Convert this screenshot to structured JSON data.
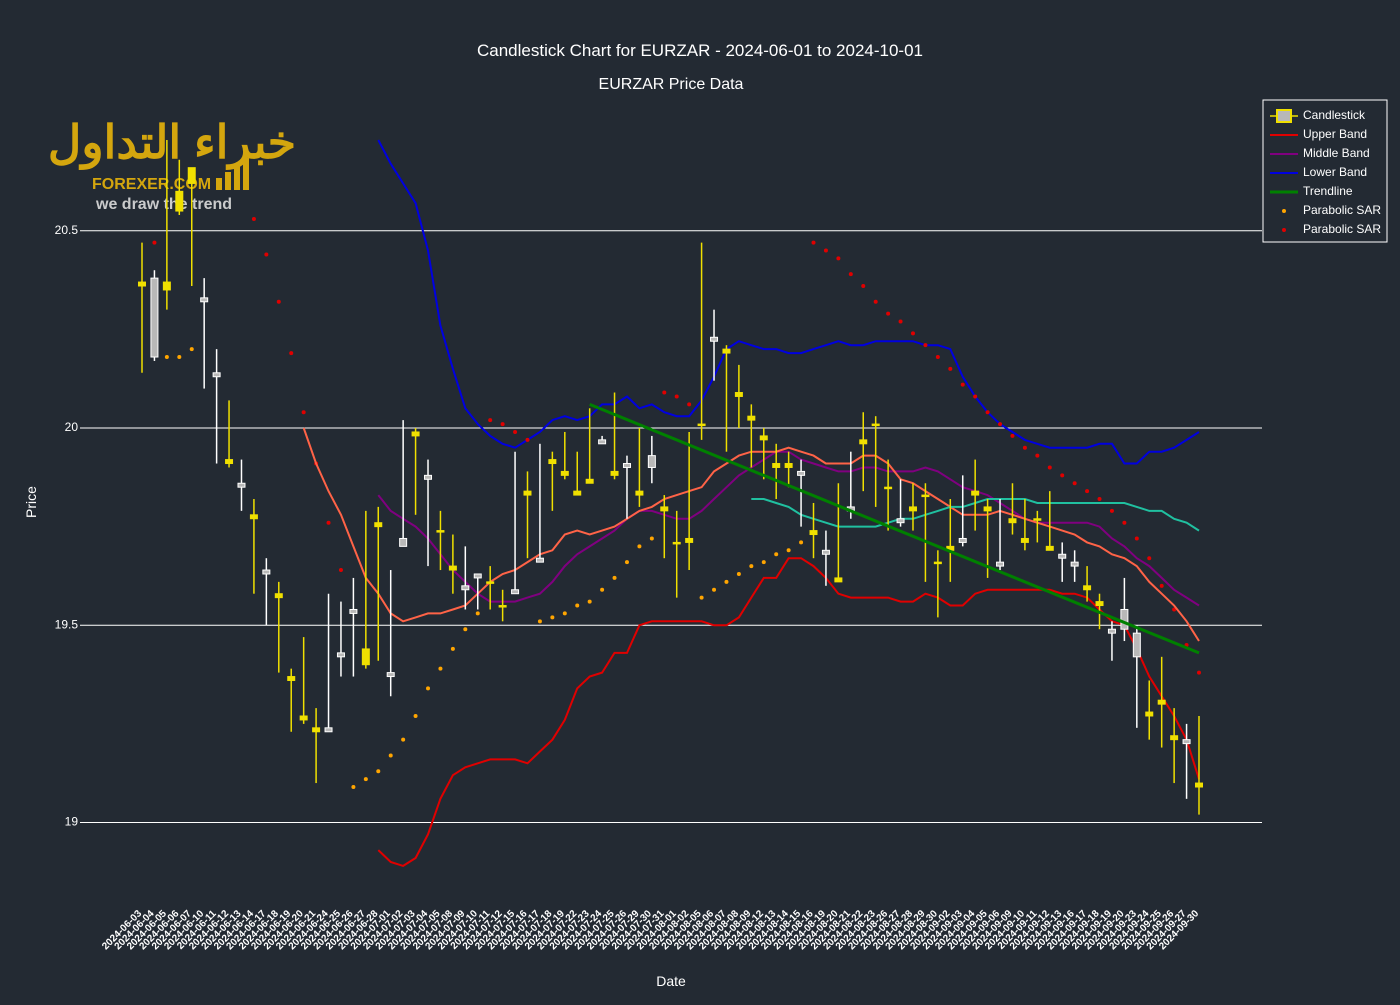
{
  "watermark": {
    "arabic": "خبراء التداول",
    "brand": "FOREXER.COM",
    "tagline": "we draw the trend"
  },
  "chart_data": {
    "type": "candlestick",
    "title": "Candlestick Chart for EURZAR - 2024-06-01 to 2024-10-01",
    "subtitle": "EURZAR Price Data",
    "x_label": "Date",
    "y_label": "Price",
    "ylim": [
      18.8,
      20.83
    ],
    "yticks": [
      19,
      19.5,
      20,
      20.5
    ],
    "grid": true,
    "legend": "top-right",
    "categories": [
      "2024-06-03",
      "2024-06-04",
      "2024-06-05",
      "2024-06-06",
      "2024-06-07",
      "2024-06-10",
      "2024-06-11",
      "2024-06-12",
      "2024-06-13",
      "2024-06-14",
      "2024-06-17",
      "2024-06-18",
      "2024-06-19",
      "2024-06-20",
      "2024-06-21",
      "2024-06-24",
      "2024-06-25",
      "2024-06-26",
      "2024-06-27",
      "2024-06-28",
      "2024-07-01",
      "2024-07-02",
      "2024-07-03",
      "2024-07-04",
      "2024-07-05",
      "2024-07-08",
      "2024-07-09",
      "2024-07-10",
      "2024-07-11",
      "2024-07-12",
      "2024-07-15",
      "2024-07-16",
      "2024-07-17",
      "2024-07-18",
      "2024-07-19",
      "2024-07-22",
      "2024-07-23",
      "2024-07-24",
      "2024-07-25",
      "2024-07-26",
      "2024-07-29",
      "2024-07-30",
      "2024-07-31",
      "2024-08-01",
      "2024-08-02",
      "2024-08-05",
      "2024-08-06",
      "2024-08-07",
      "2024-08-08",
      "2024-08-09",
      "2024-08-12",
      "2024-08-13",
      "2024-08-14",
      "2024-08-15",
      "2024-08-16",
      "2024-08-19",
      "2024-08-20",
      "2024-08-21",
      "2024-08-22",
      "2024-08-23",
      "2024-08-26",
      "2024-08-27",
      "2024-08-28",
      "2024-08-29",
      "2024-08-30",
      "2024-09-02",
      "2024-09-03",
      "2024-09-04",
      "2024-09-05",
      "2024-09-06",
      "2024-09-09",
      "2024-09-10",
      "2024-09-11",
      "2024-09-12",
      "2024-09-13",
      "2024-09-16",
      "2024-09-17",
      "2024-09-18",
      "2024-09-19",
      "2024-09-20",
      "2024-09-23",
      "2024-09-24",
      "2024-09-25",
      "2024-09-26",
      "2024-09-27",
      "2024-09-30"
    ],
    "candles": {
      "name": "Candlestick",
      "increasing_color": "#f0e000",
      "decreasing_color": "#ffffff",
      "open": [
        20.36,
        20.38,
        20.35,
        20.55,
        20.62,
        20.33,
        20.14,
        19.91,
        19.86,
        19.77,
        19.64,
        19.57,
        19.36,
        19.26,
        19.23,
        19.24,
        19.43,
        19.54,
        19.4,
        19.75,
        19.38,
        19.72,
        19.98,
        19.88,
        19.74,
        19.64,
        19.6,
        19.63,
        19.61,
        19.55,
        19.59,
        19.83,
        19.67,
        19.91,
        19.88,
        19.83,
        19.86,
        19.97,
        19.88,
        19.91,
        19.83,
        19.93,
        19.79,
        19.71,
        19.71,
        20.01,
        20.23,
        20.19,
        20.08,
        20.02,
        19.97,
        19.9,
        19.9,
        19.89,
        19.73,
        19.69,
        19.61,
        19.8,
        19.96,
        20.01,
        19.85,
        19.77,
        19.79,
        19.83,
        19.66,
        19.69,
        19.72,
        19.83,
        19.79,
        19.66,
        19.76,
        19.71,
        19.77,
        19.69,
        19.68,
        19.66,
        19.59,
        19.55,
        19.49,
        19.54,
        19.48,
        19.27,
        19.3,
        19.21,
        19.21,
        19.09
      ],
      "high": [
        20.47,
        20.4,
        20.73,
        20.68,
        20.66,
        20.38,
        20.2,
        20.07,
        19.92,
        19.82,
        19.67,
        19.61,
        19.39,
        19.47,
        19.29,
        19.58,
        19.56,
        19.62,
        19.79,
        19.8,
        19.64,
        20.02,
        20.0,
        19.92,
        19.79,
        19.73,
        19.7,
        19.63,
        19.65,
        19.59,
        19.94,
        19.89,
        19.96,
        19.94,
        19.99,
        19.94,
        20.05,
        19.98,
        20.09,
        19.93,
        20.0,
        19.98,
        19.83,
        19.79,
        19.99,
        20.47,
        20.3,
        20.21,
        20.16,
        20.06,
        20.0,
        19.96,
        19.94,
        19.92,
        19.81,
        19.74,
        19.86,
        19.94,
        20.04,
        20.03,
        19.92,
        19.87,
        19.86,
        19.86,
        19.69,
        19.82,
        19.88,
        19.92,
        19.82,
        19.82,
        19.86,
        19.82,
        19.79,
        19.84,
        19.71,
        19.69,
        19.65,
        19.58,
        19.51,
        19.62,
        19.5,
        19.36,
        19.42,
        19.29,
        19.25,
        19.27
      ],
      "low": [
        20.14,
        20.17,
        20.3,
        20.54,
        20.36,
        20.1,
        19.91,
        19.9,
        19.79,
        19.58,
        19.5,
        19.38,
        19.23,
        19.25,
        19.1,
        19.23,
        19.37,
        19.37,
        19.39,
        19.41,
        19.32,
        19.7,
        19.78,
        19.65,
        19.64,
        19.58,
        19.54,
        19.54,
        19.54,
        19.51,
        19.58,
        19.67,
        19.66,
        19.79,
        19.87,
        19.83,
        19.86,
        19.96,
        19.87,
        19.77,
        19.8,
        19.86,
        19.67,
        19.57,
        19.64,
        19.97,
        20.12,
        19.94,
        20.0,
        19.9,
        19.87,
        19.82,
        19.85,
        19.75,
        19.67,
        19.6,
        19.61,
        19.77,
        19.84,
        19.8,
        19.74,
        19.75,
        19.74,
        19.61,
        19.52,
        19.61,
        19.7,
        19.74,
        19.62,
        19.64,
        19.73,
        19.69,
        19.71,
        19.69,
        19.61,
        19.61,
        19.56,
        19.49,
        19.41,
        19.46,
        19.24,
        19.21,
        19.19,
        19.1,
        19.06,
        19.02
      ],
      "close": [
        20.37,
        20.18,
        20.37,
        20.6,
        20.66,
        20.32,
        20.13,
        19.92,
        19.85,
        19.78,
        19.63,
        19.58,
        19.37,
        19.27,
        19.24,
        19.23,
        19.42,
        19.53,
        19.44,
        19.76,
        19.37,
        19.7,
        19.99,
        19.87,
        19.74,
        19.65,
        19.59,
        19.62,
        19.61,
        19.55,
        19.58,
        19.84,
        19.66,
        19.92,
        19.89,
        19.84,
        19.87,
        19.96,
        19.89,
        19.9,
        19.84,
        19.9,
        19.8,
        19.71,
        19.72,
        20.01,
        20.22,
        20.2,
        20.09,
        20.03,
        19.98,
        19.91,
        19.91,
        19.88,
        19.74,
        19.68,
        19.62,
        19.79,
        19.97,
        20.01,
        19.85,
        19.76,
        19.8,
        19.83,
        19.66,
        19.7,
        19.71,
        19.84,
        19.8,
        19.65,
        19.77,
        19.72,
        19.77,
        19.7,
        19.67,
        19.65,
        19.6,
        19.56,
        19.48,
        19.49,
        19.42,
        19.28,
        19.31,
        19.22,
        19.2,
        19.1
      ]
    },
    "series": [
      {
        "name": "Upper Band",
        "type": "line",
        "color": "#e00000",
        "values": [
          null,
          null,
          null,
          null,
          null,
          null,
          null,
          null,
          null,
          null,
          null,
          null,
          null,
          null,
          null,
          null,
          null,
          null,
          null,
          18.93,
          18.9,
          18.89,
          18.91,
          18.97,
          19.06,
          19.12,
          19.14,
          19.15,
          19.16,
          19.16,
          19.16,
          19.15,
          19.18,
          19.21,
          19.26,
          19.34,
          19.37,
          19.38,
          19.43,
          19.43,
          19.5,
          19.51,
          19.51,
          19.51,
          19.51,
          19.51,
          19.5,
          19.5,
          19.52,
          19.57,
          19.62,
          19.62,
          19.67,
          19.67,
          19.65,
          19.62,
          19.58,
          19.57,
          19.57,
          19.57,
          19.57,
          19.56,
          19.56,
          19.58,
          19.57,
          19.55,
          19.55,
          19.58,
          19.59,
          19.59,
          19.59,
          19.59,
          19.59,
          19.59,
          19.58,
          19.58,
          19.57,
          19.54,
          19.51,
          19.5,
          19.44,
          19.37,
          19.32,
          19.27,
          19.21,
          19.11
        ]
      },
      {
        "name": "Middle Band",
        "type": "line",
        "color": "#800080",
        "values": [
          null,
          null,
          null,
          null,
          null,
          null,
          null,
          null,
          null,
          null,
          null,
          null,
          null,
          null,
          null,
          null,
          null,
          null,
          null,
          19.83,
          19.79,
          19.77,
          19.75,
          19.72,
          19.68,
          19.64,
          19.61,
          19.58,
          19.56,
          19.56,
          19.56,
          19.57,
          19.58,
          19.61,
          19.65,
          19.68,
          19.7,
          19.72,
          19.74,
          19.77,
          19.79,
          19.79,
          19.78,
          19.77,
          19.77,
          19.79,
          19.82,
          19.85,
          19.88,
          19.9,
          19.92,
          19.94,
          19.94,
          19.92,
          19.91,
          19.9,
          19.89,
          19.89,
          19.9,
          19.9,
          19.89,
          19.89,
          19.89,
          19.9,
          19.89,
          19.87,
          19.85,
          19.84,
          19.83,
          19.81,
          19.79,
          19.77,
          19.76,
          19.76,
          19.76,
          19.76,
          19.76,
          19.75,
          19.72,
          19.7,
          19.67,
          19.65,
          19.62,
          19.59,
          19.57,
          19.55
        ]
      },
      {
        "name": "Lower Band",
        "type": "line",
        "color": "#0000e0",
        "values": [
          null,
          null,
          null,
          null,
          null,
          null,
          null,
          null,
          null,
          null,
          null,
          null,
          null,
          null,
          null,
          null,
          null,
          null,
          null,
          20.73,
          20.67,
          20.62,
          20.57,
          20.45,
          20.26,
          20.15,
          20.05,
          20.01,
          19.98,
          19.96,
          19.95,
          19.97,
          19.99,
          20.02,
          20.03,
          20.02,
          20.03,
          20.06,
          20.06,
          20.08,
          20.05,
          20.06,
          20.04,
          20.03,
          20.03,
          20.07,
          20.13,
          20.2,
          20.22,
          20.21,
          20.2,
          20.2,
          20.19,
          20.19,
          20.2,
          20.21,
          20.22,
          20.21,
          20.21,
          20.22,
          20.22,
          20.22,
          20.22,
          20.21,
          20.21,
          20.2,
          20.13,
          20.08,
          20.04,
          20.01,
          19.99,
          19.97,
          19.96,
          19.95,
          19.95,
          19.95,
          19.95,
          19.96,
          19.96,
          19.91,
          19.91,
          19.94,
          19.94,
          19.95,
          19.97,
          19.99
        ]
      },
      {
        "name": "Trendline",
        "type": "line",
        "color": "#008000",
        "width": 3,
        "x": [
          "2024-07-23",
          "2024-09-30"
        ],
        "values": [
          20.06,
          19.43
        ]
      },
      {
        "name": "Parabolic SAR",
        "type": "scatter",
        "color": "#ffa500",
        "values": [
          null,
          null,
          20.18,
          20.18,
          20.2,
          null,
          null,
          null,
          null,
          null,
          null,
          null,
          null,
          null,
          null,
          null,
          null,
          19.09,
          19.11,
          19.13,
          19.17,
          19.21,
          19.27,
          19.34,
          19.39,
          19.44,
          19.49,
          19.53,
          null,
          null,
          null,
          null,
          19.51,
          19.52,
          19.53,
          19.55,
          19.56,
          19.59,
          19.62,
          19.66,
          19.7,
          19.72,
          null,
          null,
          null,
          19.57,
          19.59,
          19.61,
          19.63,
          19.65,
          19.66,
          19.68,
          19.69,
          19.71,
          null,
          null,
          null,
          null,
          null,
          null,
          null,
          null,
          null,
          null,
          null,
          null,
          null,
          null,
          null,
          null,
          null,
          null,
          null,
          null,
          null,
          null,
          null,
          null,
          null,
          null,
          null,
          null,
          null,
          null,
          null,
          null
        ]
      },
      {
        "name": "Parabolic SAR",
        "type": "scatter",
        "color": "#e00000",
        "values": [
          null,
          20.47,
          null,
          null,
          null,
          null,
          null,
          null,
          null,
          20.53,
          20.44,
          20.32,
          20.19,
          20.04,
          19.91,
          19.76,
          19.64,
          null,
          null,
          null,
          null,
          null,
          null,
          null,
          null,
          null,
          null,
          null,
          20.02,
          20.01,
          19.99,
          19.97,
          null,
          null,
          null,
          null,
          null,
          null,
          null,
          null,
          null,
          null,
          20.09,
          20.08,
          20.06,
          null,
          null,
          null,
          null,
          null,
          null,
          null,
          null,
          null,
          20.47,
          20.45,
          20.43,
          20.39,
          20.36,
          20.32,
          20.29,
          20.27,
          20.24,
          20.21,
          20.18,
          20.15,
          20.11,
          20.08,
          20.04,
          20.01,
          19.98,
          19.95,
          19.93,
          19.9,
          19.88,
          19.86,
          19.84,
          19.82,
          19.79,
          19.76,
          19.72,
          19.67,
          19.6,
          19.54,
          19.45,
          19.38
        ]
      },
      {
        "type": "line",
        "color": "#ff6347",
        "values": [
          null,
          null,
          null,
          null,
          null,
          null,
          null,
          null,
          null,
          null,
          null,
          null,
          null,
          20.0,
          19.91,
          19.84,
          19.78,
          19.7,
          19.62,
          19.58,
          19.53,
          19.51,
          19.52,
          19.53,
          19.53,
          19.54,
          19.55,
          19.58,
          19.61,
          19.63,
          19.64,
          19.66,
          19.68,
          19.69,
          19.73,
          19.74,
          19.73,
          19.74,
          19.75,
          19.77,
          19.79,
          19.8,
          19.82,
          19.83,
          19.84,
          19.85,
          19.89,
          19.91,
          19.93,
          19.94,
          19.94,
          19.94,
          19.95,
          19.94,
          19.93,
          19.91,
          19.91,
          19.91,
          19.93,
          19.93,
          19.91,
          19.87,
          19.86,
          19.84,
          19.82,
          19.8,
          19.78,
          19.78,
          19.78,
          19.79,
          19.78,
          19.77,
          19.76,
          19.75,
          19.74,
          19.73,
          19.71,
          19.7,
          19.68,
          19.67,
          19.65,
          19.61,
          19.58,
          19.55,
          19.51,
          19.46
        ]
      },
      {
        "type": "line",
        "color": "#20c0a0",
        "values": [
          null,
          null,
          null,
          null,
          null,
          null,
          null,
          null,
          null,
          null,
          null,
          null,
          null,
          null,
          null,
          null,
          null,
          null,
          null,
          null,
          null,
          null,
          null,
          null,
          null,
          null,
          null,
          null,
          null,
          null,
          null,
          null,
          null,
          null,
          null,
          null,
          null,
          null,
          null,
          null,
          null,
          null,
          null,
          null,
          null,
          null,
          null,
          null,
          null,
          19.82,
          19.82,
          19.81,
          19.8,
          19.78,
          19.77,
          19.76,
          19.75,
          19.75,
          19.75,
          19.75,
          19.76,
          19.77,
          19.77,
          19.78,
          19.79,
          19.8,
          19.8,
          19.81,
          19.82,
          19.82,
          19.82,
          19.82,
          19.81,
          19.81,
          19.81,
          19.81,
          19.81,
          19.81,
          19.81,
          19.81,
          19.8,
          19.79,
          19.79,
          19.77,
          19.76,
          19.74
        ]
      }
    ]
  }
}
